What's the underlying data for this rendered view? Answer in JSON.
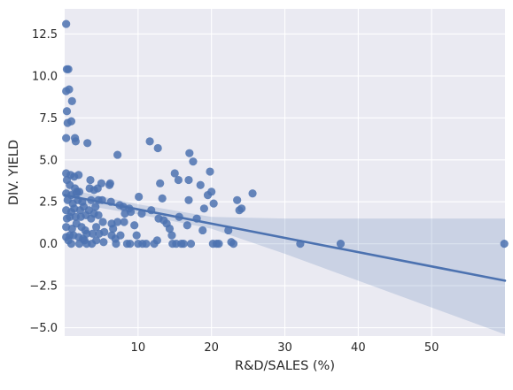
{
  "chart_data": {
    "type": "scatter",
    "title": "",
    "xlabel": "R&D/SALES (%)",
    "ylabel": "DIV. YIELD",
    "xlim": [
      0,
      60
    ],
    "ylim": [
      -5.5,
      14
    ],
    "xticks": [
      10,
      20,
      30,
      40,
      50
    ],
    "yticks": [
      -5.0,
      -2.5,
      0.0,
      2.5,
      5.0,
      7.5,
      10.0,
      12.5
    ],
    "ytick_labels": [
      "−5.0",
      "−2.5",
      "0.0",
      "2.5",
      "5.0",
      "7.5",
      "10.0",
      "12.5"
    ],
    "grid": true,
    "legend": "none",
    "colors": {
      "background": "#eaeaf2",
      "grid": "#ffffff",
      "points": "#4c72b0",
      "fit_line": "#4c72b0",
      "confidence_band": "#4c72b0"
    },
    "points": [
      [
        0.2,
        13.1
      ],
      [
        0.3,
        10.4
      ],
      [
        0.5,
        10.4
      ],
      [
        0.2,
        9.1
      ],
      [
        0.6,
        9.2
      ],
      [
        1.0,
        8.5
      ],
      [
        0.3,
        7.9
      ],
      [
        0.9,
        7.3
      ],
      [
        0.4,
        7.2
      ],
      [
        0.2,
        6.3
      ],
      [
        1.4,
        6.3
      ],
      [
        1.5,
        6.1
      ],
      [
        3.1,
        6.0
      ],
      [
        0.2,
        4.2
      ],
      [
        0.8,
        4.1
      ],
      [
        1.3,
        4.0
      ],
      [
        1.9,
        4.1
      ],
      [
        0.3,
        3.8
      ],
      [
        0.7,
        3.5
      ],
      [
        1.4,
        3.3
      ],
      [
        0.2,
        3.0
      ],
      [
        0.9,
        2.9
      ],
      [
        1.6,
        3.0
      ],
      [
        2.0,
        3.1
      ],
      [
        1.7,
        3.1
      ],
      [
        0.4,
        2.6
      ],
      [
        1.1,
        2.4
      ],
      [
        1.8,
        2.6
      ],
      [
        2.4,
        2.5
      ],
      [
        0.2,
        2.0
      ],
      [
        0.9,
        1.9
      ],
      [
        1.3,
        2.1
      ],
      [
        2.1,
        2.0
      ],
      [
        2.6,
        2.2
      ],
      [
        0.3,
        1.5
      ],
      [
        0.7,
        1.6
      ],
      [
        1.5,
        1.6
      ],
      [
        2.2,
        1.6
      ],
      [
        2.9,
        1.7
      ],
      [
        0.2,
        1.0
      ],
      [
        1.0,
        0.9
      ],
      [
        1.6,
        1.2
      ],
      [
        2.3,
        1.0
      ],
      [
        2.8,
        0.8
      ],
      [
        0.2,
        0.4
      ],
      [
        0.7,
        0.5
      ],
      [
        1.2,
        0.5
      ],
      [
        1.9,
        0.4
      ],
      [
        2.5,
        0.3
      ],
      [
        0.5,
        0.2
      ],
      [
        0.9,
        0.0
      ],
      [
        2.0,
        0.0
      ],
      [
        3.0,
        0.6
      ],
      [
        2.7,
        0.2
      ],
      [
        3.0,
        0.0
      ],
      [
        3.3,
        2.0
      ],
      [
        3.4,
        3.3
      ],
      [
        3.5,
        3.8
      ],
      [
        3.6,
        2.6
      ],
      [
        3.6,
        1.5
      ],
      [
        3.8,
        0.6
      ],
      [
        4.0,
        1.8
      ],
      [
        4.0,
        3.2
      ],
      [
        4.2,
        2.2
      ],
      [
        4.3,
        1.0
      ],
      [
        4.3,
        0.2
      ],
      [
        4.5,
        3.3
      ],
      [
        4.6,
        2.6
      ],
      [
        4.6,
        1.7
      ],
      [
        4.7,
        0.6
      ],
      [
        5.0,
        3.6
      ],
      [
        5.1,
        2.6
      ],
      [
        5.2,
        1.3
      ],
      [
        5.3,
        0.1
      ],
      [
        5.4,
        0.7
      ],
      [
        3.7,
        0.0
      ],
      [
        6.1,
        3.5
      ],
      [
        6.2,
        3.6
      ],
      [
        6.3,
        2.5
      ],
      [
        6.4,
        1.2
      ],
      [
        6.4,
        0.5
      ],
      [
        6.6,
        0.9
      ],
      [
        6.9,
        0.3
      ],
      [
        7.0,
        0.0
      ],
      [
        7.2,
        1.3
      ],
      [
        7.2,
        5.3
      ],
      [
        7.5,
        2.3
      ],
      [
        7.6,
        0.5
      ],
      [
        8.0,
        2.2
      ],
      [
        8.1,
        1.3
      ],
      [
        8.2,
        1.8
      ],
      [
        8.5,
        0.0
      ],
      [
        8.8,
        2.1
      ],
      [
        8.9,
        0.0
      ],
      [
        9.0,
        1.9
      ],
      [
        9.5,
        1.1
      ],
      [
        9.8,
        0.5
      ],
      [
        10.0,
        0.0
      ],
      [
        10.1,
        2.8
      ],
      [
        10.5,
        1.8
      ],
      [
        10.6,
        0.0
      ],
      [
        11.1,
        0.0
      ],
      [
        11.6,
        6.1
      ],
      [
        11.8,
        2.0
      ],
      [
        12.2,
        0.0
      ],
      [
        12.6,
        0.2
      ],
      [
        12.7,
        5.7
      ],
      [
        12.8,
        1.5
      ],
      [
        13.0,
        3.6
      ],
      [
        13.3,
        2.7
      ],
      [
        13.5,
        1.4
      ],
      [
        13.9,
        1.2
      ],
      [
        14.3,
        0.9
      ],
      [
        14.6,
        0.5
      ],
      [
        14.7,
        0.0
      ],
      [
        15.0,
        4.2
      ],
      [
        15.2,
        0.0
      ],
      [
        15.5,
        3.8
      ],
      [
        15.6,
        1.6
      ],
      [
        15.9,
        0.0
      ],
      [
        16.2,
        0.0
      ],
      [
        16.7,
        1.1
      ],
      [
        16.9,
        2.6
      ],
      [
        16.9,
        3.8
      ],
      [
        17.0,
        5.4
      ],
      [
        17.2,
        0.0
      ],
      [
        17.5,
        4.9
      ],
      [
        18.0,
        1.5
      ],
      [
        18.5,
        3.5
      ],
      [
        18.8,
        0.8
      ],
      [
        19.0,
        2.1
      ],
      [
        19.5,
        2.9
      ],
      [
        19.8,
        4.3
      ],
      [
        20.0,
        3.1
      ],
      [
        20.2,
        0.0
      ],
      [
        20.3,
        2.4
      ],
      [
        20.7,
        0.0
      ],
      [
        21.0,
        0.0
      ],
      [
        22.3,
        0.8
      ],
      [
        22.7,
        0.1
      ],
      [
        23.0,
        0.0
      ],
      [
        23.5,
        2.6
      ],
      [
        23.8,
        2.0
      ],
      [
        24.1,
        2.1
      ],
      [
        25.6,
        3.0
      ],
      [
        32.1,
        0.0
      ],
      [
        37.6,
        0.0
      ],
      [
        59.9,
        0.0
      ]
    ],
    "regression": {
      "slope": -0.085,
      "intercept": 2.9,
      "band": [
        {
          "x": 0,
          "lower": 2.5,
          "upper": 3.3
        },
        {
          "x": 10,
          "lower": 1.75,
          "upper": 2.35
        },
        {
          "x": 20,
          "lower": 0.9,
          "upper": 1.6
        },
        {
          "x": 30,
          "lower": -0.6,
          "upper": 1.5
        },
        {
          "x": 40,
          "lower": -2.2,
          "upper": 1.5
        },
        {
          "x": 50,
          "lower": -3.8,
          "upper": 1.5
        },
        {
          "x": 60,
          "lower": -5.4,
          "upper": 1.5
        }
      ]
    }
  }
}
